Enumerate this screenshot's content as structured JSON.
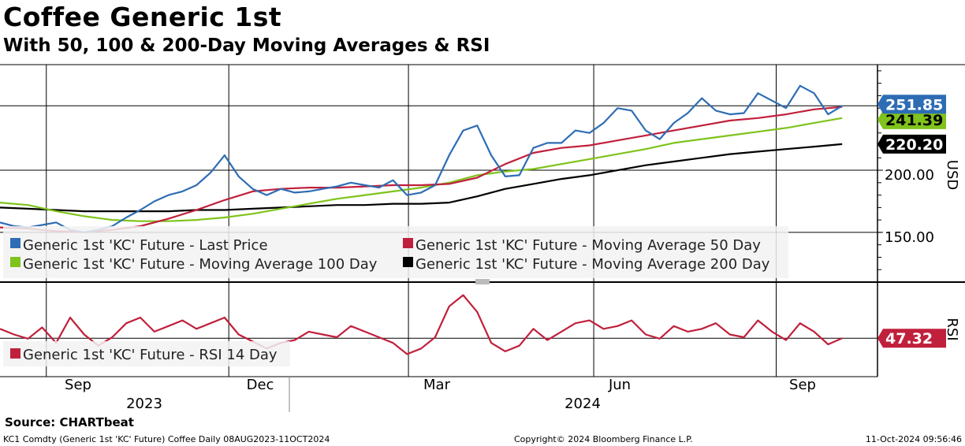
{
  "title": "Coffee Generic 1st",
  "subtitle": "With 50, 100 & 200-Day Moving Averages & RSI",
  "source": "Source: CHARTbeat",
  "footer": {
    "left": "KC1 Comdty (Generic 1st 'KC' Future) Coffee  Daily 08AUG2023-11OCT2024",
    "center": "Copyright© 2024 Bloomberg Finance L.P.",
    "right": "11-Oct-2024 09:56:46"
  },
  "colors": {
    "last_price": "#2e6db4",
    "ma50": "#c0203c",
    "ma100": "#7fc31c",
    "ma200": "#000000",
    "rsi": "#c0203c"
  },
  "chart_data": [
    {
      "type": "line",
      "title": "Coffee Generic 1st",
      "ylabel": "USD",
      "ylim": [
        110,
        285
      ],
      "yticks": [
        150,
        200
      ],
      "ytick_labels": [
        "150.00",
        "200.00"
      ],
      "x_months": [
        "Sep",
        "Dec",
        "Mar",
        "Jun",
        "Sep"
      ],
      "x_years": [
        "2023",
        "2024"
      ],
      "x_range": [
        0,
        61
      ],
      "month_positions": [
        3.3,
        16.3,
        29.1,
        42.3,
        55.3
      ],
      "series": [
        {
          "name": "Generic 1st 'KC' Future - Last Price",
          "color_key": "last_price",
          "last_label": "251.85",
          "x": [
            0,
            1,
            2,
            3,
            4,
            5,
            6,
            7,
            8,
            9,
            10,
            11,
            12,
            13,
            14,
            15,
            16,
            17,
            18,
            19,
            20,
            21,
            22,
            23,
            24,
            25,
            26,
            27,
            28,
            29,
            30,
            31,
            32,
            33,
            34,
            35,
            36,
            37,
            38,
            39,
            40,
            41,
            42,
            43,
            44,
            45,
            46,
            47,
            48,
            49,
            50,
            51,
            52,
            53,
            54,
            55,
            56,
            57,
            58,
            59,
            60
          ],
          "values": [
            158,
            155,
            154,
            156,
            158,
            152,
            150,
            152,
            155,
            162,
            168,
            175,
            180,
            183,
            188,
            198,
            212,
            195,
            185,
            180,
            185,
            182,
            183,
            185,
            187,
            190,
            188,
            186,
            192,
            180,
            182,
            188,
            212,
            232,
            236,
            212,
            195,
            196,
            218,
            222,
            222,
            232,
            230,
            238,
            250,
            248,
            232,
            225,
            238,
            246,
            258,
            248,
            245,
            246,
            262,
            256,
            250,
            268,
            262,
            245,
            251.85
          ]
        },
        {
          "name": "Generic 1st 'KC' Future - Moving Average 50 Day",
          "color_key": "ma50",
          "last_label": "",
          "x": [
            0,
            2,
            4,
            6,
            8,
            10,
            12,
            14,
            16,
            18,
            20,
            22,
            24,
            26,
            28,
            30,
            32,
            34,
            36,
            38,
            40,
            42,
            44,
            46,
            48,
            50,
            52,
            54,
            56,
            58,
            60
          ],
          "values": [
            154,
            153,
            151,
            150,
            152,
            155,
            161,
            168,
            176,
            183,
            185,
            186,
            186,
            187,
            188,
            188,
            189,
            194,
            205,
            214,
            218,
            220,
            224,
            228,
            232,
            236,
            240,
            242,
            245,
            249,
            251
          ]
        },
        {
          "name": "Generic 1st 'KC' Future - Moving Average 100 Day",
          "color_key": "ma100",
          "last_label": "241.39",
          "x": [
            0,
            2,
            4,
            6,
            8,
            10,
            12,
            14,
            16,
            18,
            20,
            22,
            24,
            26,
            28,
            30,
            32,
            34,
            36,
            38,
            40,
            42,
            44,
            46,
            48,
            50,
            52,
            54,
            56,
            58,
            60
          ],
          "values": [
            174,
            172,
            167,
            163,
            160,
            159,
            159,
            160,
            162,
            165,
            169,
            173,
            177,
            180,
            183,
            186,
            190,
            196,
            199,
            201,
            205,
            209,
            213,
            217,
            222,
            225,
            228,
            231,
            234,
            238,
            242
          ]
        },
        {
          "name": "Generic 1st 'KC' Future - Moving Average 200 Day",
          "color_key": "ma200",
          "last_label": "220.20",
          "x": [
            0,
            2,
            4,
            6,
            8,
            10,
            12,
            14,
            16,
            18,
            20,
            22,
            24,
            26,
            28,
            30,
            32,
            34,
            36,
            38,
            40,
            42,
            44,
            46,
            48,
            50,
            52,
            54,
            56,
            58,
            60
          ],
          "values": [
            170,
            169,
            168,
            167,
            167,
            167,
            167,
            168,
            168,
            169,
            170,
            171,
            172,
            172,
            173,
            173,
            174,
            179,
            185,
            189,
            193,
            196,
            200,
            204,
            207,
            210,
            213,
            215,
            217,
            219,
            221
          ]
        }
      ],
      "legend": [
        {
          "label": "Generic 1st 'KC' Future - Last Price",
          "color_key": "last_price"
        },
        {
          "label": "Generic 1st 'KC' Future - Moving Average 50 Day",
          "color_key": "ma50"
        },
        {
          "label": "Generic 1st 'KC' Future - Moving Average 100 Day",
          "color_key": "ma100"
        },
        {
          "label": "Generic 1st 'KC' Future - Moving Average 200 Day",
          "color_key": "ma200"
        }
      ]
    },
    {
      "type": "line",
      "title": "RSI",
      "ylabel": "RSI",
      "ylim": [
        20,
        85
      ],
      "reference_line": 47.32,
      "series": [
        {
          "name": "Generic 1st 'KC' Future - RSI 14 Day",
          "color_key": "rsi",
          "last_label": "47.32",
          "x": [
            0,
            1,
            2,
            3,
            4,
            5,
            6,
            7,
            8,
            9,
            10,
            11,
            12,
            13,
            14,
            15,
            16,
            17,
            18,
            19,
            20,
            21,
            22,
            23,
            24,
            25,
            26,
            27,
            28,
            29,
            30,
            31,
            32,
            33,
            34,
            35,
            36,
            37,
            38,
            39,
            40,
            41,
            42,
            43,
            44,
            45,
            46,
            47,
            48,
            49,
            50,
            51,
            52,
            53,
            54,
            55,
            56,
            57,
            58,
            59,
            60
          ],
          "values": [
            54,
            50,
            47,
            55,
            44,
            62,
            50,
            42,
            48,
            58,
            62,
            52,
            56,
            60,
            54,
            58,
            62,
            50,
            45,
            40,
            44,
            46,
            52,
            50,
            48,
            56,
            52,
            48,
            44,
            36,
            40,
            48,
            70,
            78,
            66,
            44,
            38,
            42,
            54,
            46,
            52,
            58,
            60,
            54,
            56,
            60,
            50,
            47,
            56,
            52,
            54,
            58,
            50,
            48,
            60,
            52,
            46,
            58,
            52,
            43,
            47.32
          ]
        }
      ],
      "legend": [
        {
          "label": "Generic 1st 'KC' Future - RSI 14 Day",
          "color_key": "rsi"
        }
      ]
    }
  ]
}
